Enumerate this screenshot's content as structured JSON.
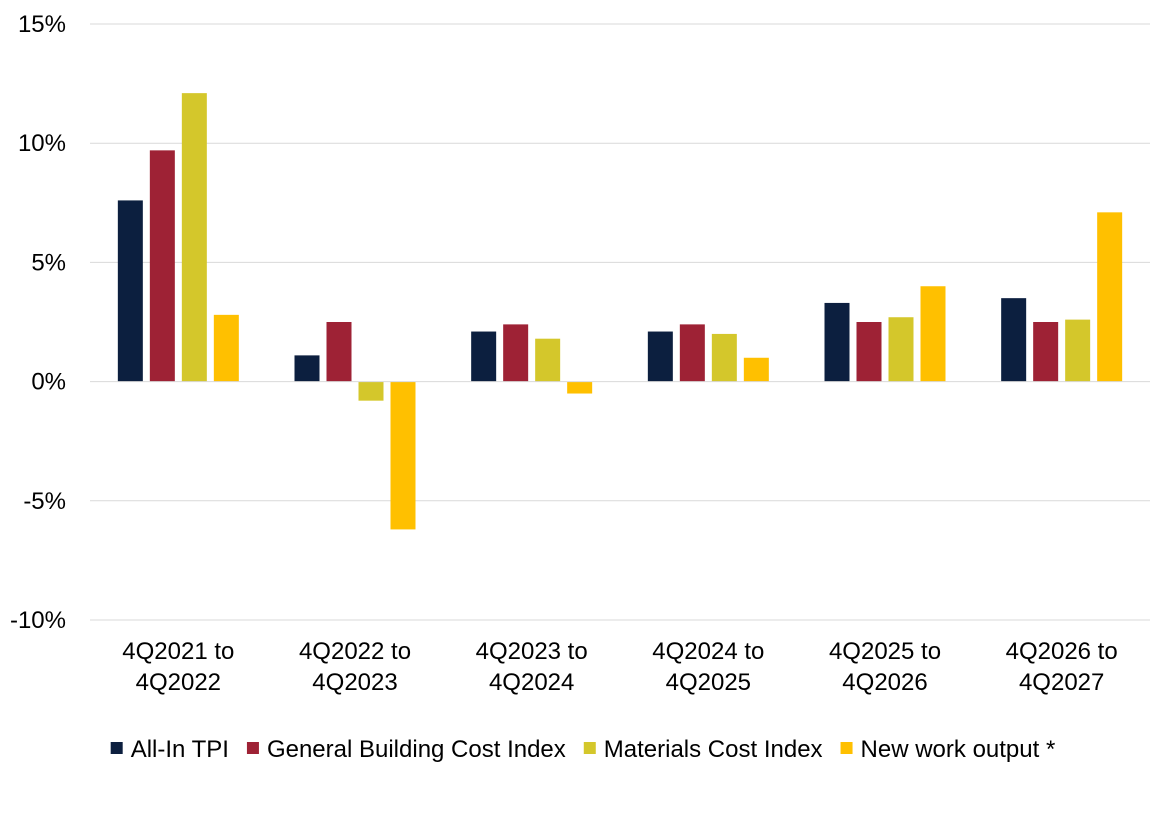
{
  "chart_data": {
    "type": "bar",
    "title": "",
    "xlabel": "",
    "ylabel": "",
    "ylim": [
      -0.1,
      0.15
    ],
    "yticks": [
      {
        "value": 0.15,
        "label": "15%"
      },
      {
        "value": 0.1,
        "label": "10%"
      },
      {
        "value": 0.05,
        "label": "5%"
      },
      {
        "value": 0.0,
        "label": "0%"
      },
      {
        "value": -0.05,
        "label": "-5%"
      },
      {
        "value": -0.1,
        "label": "-10%"
      }
    ],
    "grid": true,
    "legend_position": "bottom",
    "categories": [
      [
        "4Q2021 to",
        "4Q2022"
      ],
      [
        "4Q2022 to",
        "4Q2023"
      ],
      [
        "4Q2023 to",
        "4Q2024"
      ],
      [
        "4Q2024 to",
        "4Q2025"
      ],
      [
        "4Q2025 to",
        "4Q2026"
      ],
      [
        "4Q2026 to",
        "4Q2027"
      ]
    ],
    "series": [
      {
        "name": "All-In TPI",
        "color": "#0c1f3f",
        "values": [
          0.076,
          0.011,
          0.021,
          0.021,
          0.033,
          0.035
        ]
      },
      {
        "name": "General Building Cost Index",
        "color": "#9e2235",
        "values": [
          0.097,
          0.025,
          0.024,
          0.024,
          0.025,
          0.025
        ]
      },
      {
        "name": "Materials Cost Index",
        "color": "#d4c72b",
        "values": [
          0.121,
          -0.008,
          0.018,
          0.02,
          0.027,
          0.026
        ]
      },
      {
        "name": "New work output *",
        "color": "#ffc000",
        "values": [
          0.028,
          -0.062,
          -0.005,
          0.01,
          0.04,
          0.071
        ]
      }
    ]
  }
}
